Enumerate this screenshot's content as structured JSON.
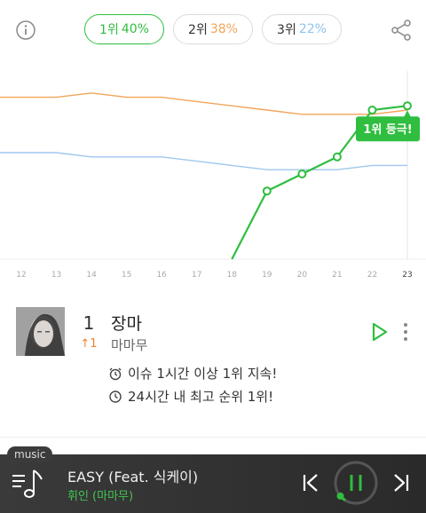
{
  "tabs": [
    {
      "rank_label": "1위",
      "pct": "40%"
    },
    {
      "rank_label": "2위",
      "pct": "38%"
    },
    {
      "rank_label": "3위",
      "pct": "22%"
    }
  ],
  "icons": {
    "info": "info-icon",
    "share": "share-icon",
    "play": "play-icon",
    "more": "more-vertical-icon",
    "clock_alert": "alarm-clock-icon",
    "clock": "clock-icon",
    "menu": "playlist-icon",
    "prev": "skip-previous-icon",
    "pause": "pause-icon",
    "next": "skip-next-icon"
  },
  "colors": {
    "accent_green": "#2fbe3f",
    "orange": "#f2a55a",
    "blue": "#9fc8ee",
    "rank_up": "#f0822a"
  },
  "chart_data": {
    "type": "line",
    "x": [
      "12",
      "13",
      "14",
      "15",
      "16",
      "17",
      "18",
      "19",
      "20",
      "21",
      "22",
      "23"
    ],
    "series": [
      {
        "values": [
          38,
          38,
          39,
          38,
          38,
          37,
          36,
          35,
          34,
          34,
          34,
          35
        ]
      },
      {
        "values": [
          25,
          25,
          24,
          24,
          24,
          23,
          22,
          21,
          21,
          21,
          22,
          22
        ]
      },
      {
        "values": [
          null,
          null,
          null,
          null,
          null,
          null,
          0,
          16,
          20,
          24,
          35,
          36
        ]
      }
    ],
    "annotation": "1위 등극!",
    "grid": false
  },
  "song": {
    "rank": "1",
    "change": "↑1",
    "title": "장마",
    "artist": "마마무",
    "notes": [
      "이슈 1시간 이상 1위 지속!",
      "24시간 내 최고 순위 1위!"
    ]
  },
  "player": {
    "tag": "music",
    "title": "EASY (Feat. 식케이)",
    "artist": "휘인 (마마무)",
    "progress": 0.05
  }
}
